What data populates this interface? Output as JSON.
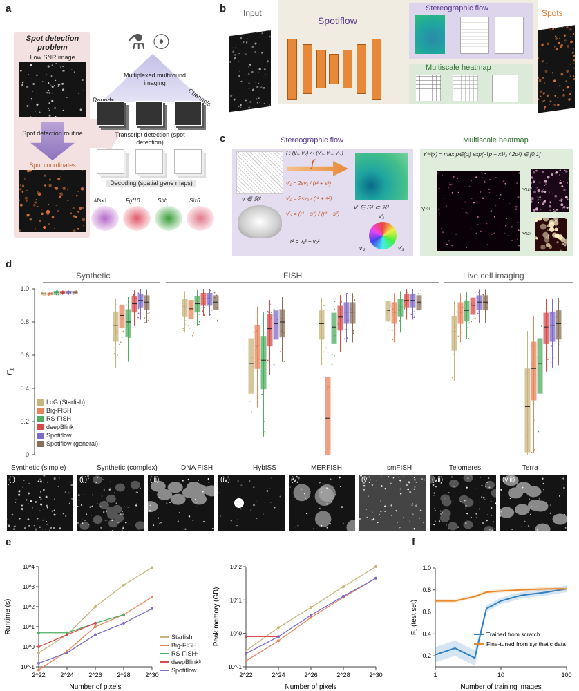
{
  "panel_a": {
    "letter": "a",
    "problem_title": "Spot detection problem",
    "low_snr": "Low SNR image",
    "routine": "Spot detection routine",
    "coords": "Spot coordinates",
    "multiplexed": "Multiplexed multiround imaging",
    "rounds": "Rounds",
    "channels": "Channels",
    "transcript": "Transcript detection (spot detection)",
    "decoding": "Decoding (spatial gene maps)",
    "genes": [
      "Msx1",
      "Fgf10",
      "Shh",
      "Six6"
    ]
  },
  "panel_b": {
    "letter": "b",
    "input": "Input",
    "spotiflow": "Spotiflow",
    "stereo": "Stereographic flow",
    "heatmap": "Multiscale heatmap",
    "spots": "Spots"
  },
  "panel_c": {
    "letter": "c",
    "stereo_title": "Stereographic flow",
    "heatmap_title": "Multiscale heatmap",
    "f_map": "f : (v₁, v₂) ↦ (v′₁, v′₂, v′₃)",
    "f": "f",
    "eq1": "v′₁ = 2sv₁ / (r² + s²)",
    "eq2": "v′₂ = 2sv₂ / (r² + s²)",
    "eq3": "v′₃ = (r² − s²) / (r² + s²)",
    "r2": "r² = v₁² + v₂²",
    "v_domain": "v ∈ ℝ²",
    "v_codomain": "v′ ∈ S² ⊂ ℝ³",
    "heat_eq": "Y⁽ˢ⁾(x) = max p∈{pᵢ} exp(−‖p − x‖²₂ / 2σ²) ∈ [0,1]",
    "y0": "Y⁽⁰⁾",
    "y1": "Y⁽¹⁾",
    "y2": "Y⁽²⁾",
    "wheel_top": "v′₁",
    "wheel_left": "v′₂",
    "wheel_right": "v′₃"
  },
  "panel_d": {
    "letter": "d",
    "groups": [
      "Synthetic",
      "FISH",
      "Live cell imaging"
    ],
    "ylabel": "F₁",
    "yticks": [
      "0",
      "0.2",
      "0.4",
      "0.6",
      "0.8",
      "1.0"
    ],
    "legend": [
      {
        "label": "LoG (Starfish)",
        "color": "#c8b47c"
      },
      {
        "label": "Big-FISH",
        "color": "#e8845a"
      },
      {
        "label": "RS-FISH",
        "color": "#4fae62"
      },
      {
        "label": "deepBlink",
        "color": "#d64b4b"
      },
      {
        "label": "Spotiflow",
        "color": "#7c6bc9"
      },
      {
        "label": "Spotiflow (general)",
        "color": "#8b6f56"
      }
    ],
    "datasets": [
      "(i) Synthetic (simple)",
      "(ii) Synthetic (complex)",
      "(iii) DNA FISH",
      "(iv) HybISS",
      "(v) MERFISH",
      "(vi) smFISH",
      "(vii) Telomeres",
      "(viii) Terra"
    ],
    "dataset_names": [
      "Synthetic (simple)",
      "Synthetic (complex)",
      "DNA FISH",
      "HybISS",
      "MERFISH",
      "smFISH",
      "Telomeres",
      "Terra"
    ],
    "roman": [
      "(i)",
      "(ii)",
      "(iii)",
      "(iv)",
      "(v)",
      "(vi)",
      "(vii)",
      "(viii)"
    ]
  },
  "panel_e": {
    "letter": "e",
    "xlabel": "Number of pixels",
    "ylabel_left": "Runtime (s)",
    "ylabel_right": "Peak memory (GB)",
    "legend": [
      "Starfish",
      "Big-FISH",
      "RS-FISHᵃ",
      "deepBlinkᵇ",
      "Spotiflow"
    ]
  },
  "panel_f": {
    "letter": "f",
    "xlabel": "Number of training images",
    "ylabel": "F₁ (test set)",
    "legend": [
      "Trained from scratch",
      "Fine-tuned from synthetic data"
    ]
  },
  "chart_data": [
    {
      "type": "box",
      "title": "",
      "ylabel": "F₁",
      "ylim": [
        0,
        1.0
      ],
      "categories": [
        "Synthetic (simple)",
        "Synthetic (complex)",
        "DNA FISH",
        "HybISS",
        "MERFISH",
        "smFISH",
        "Telomeres",
        "Terra"
      ],
      "series": [
        {
          "name": "LoG (Starfish)",
          "medians": [
            0.97,
            0.78,
            0.89,
            0.55,
            0.79,
            0.87,
            0.74,
            0.29
          ]
        },
        {
          "name": "Big-FISH",
          "medians": [
            0.97,
            0.84,
            0.88,
            0.66,
            0.22,
            0.86,
            0.86,
            0.52
          ]
        },
        {
          "name": "RS-FISH",
          "medians": [
            0.98,
            0.8,
            0.91,
            0.57,
            0.77,
            0.89,
            0.87,
            0.55
          ]
        },
        {
          "name": "deepBlink",
          "medians": [
            0.98,
            0.91,
            0.94,
            0.76,
            0.83,
            0.93,
            0.9,
            0.77
          ]
        },
        {
          "name": "Spotiflow",
          "medians": [
            0.98,
            0.93,
            0.94,
            0.79,
            0.86,
            0.93,
            0.92,
            0.78
          ]
        },
        {
          "name": "Spotiflow (general)",
          "medians": [
            0.98,
            0.92,
            0.92,
            0.8,
            0.86,
            0.92,
            0.92,
            0.79
          ]
        }
      ]
    },
    {
      "type": "line",
      "title": "",
      "xlabel": "Number of pixels",
      "ylabel": "Runtime (s)",
      "x": [
        "2^22",
        "2^24",
        "2^26",
        "2^28",
        "2^30"
      ],
      "yscale": "log",
      "ylim": [
        0.1,
        10000
      ],
      "series": [
        {
          "name": "Starfish",
          "values": [
            0.5,
            4,
            100,
            1200,
            9000
          ]
        },
        {
          "name": "Big-FISH",
          "values": [
            0.07,
            0.6,
            10,
            40,
            300
          ]
        },
        {
          "name": "RS-FISHᵃ",
          "values": [
            5,
            5,
            15,
            40,
            null
          ]
        },
        {
          "name": "deepBlinkᵇ",
          "values": [
            1,
            4,
            15,
            null,
            null
          ]
        },
        {
          "name": "Spotiflow",
          "values": [
            0.15,
            0.5,
            4,
            15,
            80
          ]
        }
      ]
    },
    {
      "type": "line",
      "title": "",
      "xlabel": "Number of pixels",
      "ylabel": "Peak memory (GB)",
      "x": [
        "2^22",
        "2^24",
        "2^26",
        "2^28",
        "2^30"
      ],
      "yscale": "log",
      "ylim": [
        0.1,
        100
      ],
      "series": [
        {
          "name": "Starfish",
          "values": [
            0.3,
            1.5,
            6,
            25,
            100
          ]
        },
        {
          "name": "Big-FISH",
          "values": [
            0.15,
            0.6,
            3,
            12,
            45
          ]
        },
        {
          "name": "RS-FISHᵃ",
          "values": [
            0.8,
            0.8,
            null,
            null,
            null
          ]
        },
        {
          "name": "deepBlinkᵇ",
          "values": [
            0.8,
            0.8,
            null,
            null,
            null
          ]
        },
        {
          "name": "Spotiflow",
          "values": [
            0.25,
            0.8,
            3.5,
            13,
            45
          ]
        }
      ]
    },
    {
      "type": "line",
      "title": "",
      "xlabel": "Number of training images",
      "ylabel": "F₁ (test set)",
      "xscale": "log",
      "ylim": [
        0.1,
        1.0
      ],
      "series": [
        {
          "name": "Trained from scratch",
          "x": [
            1,
            2,
            4,
            6,
            10,
            20,
            50,
            100
          ],
          "values": [
            0.21,
            0.27,
            0.18,
            0.63,
            0.7,
            0.75,
            0.78,
            0.81
          ]
        },
        {
          "name": "Fine-tuned from synthetic data",
          "x": [
            1,
            2,
            4,
            6,
            10,
            20,
            50,
            100
          ],
          "values": [
            0.7,
            0.7,
            0.74,
            0.78,
            0.79,
            0.8,
            0.81,
            0.81
          ]
        }
      ]
    }
  ]
}
